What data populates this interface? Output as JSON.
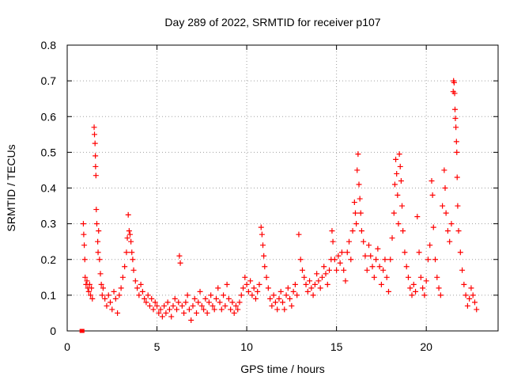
{
  "chart_data": {
    "type": "scatter",
    "title": "Day 289 of 2022, SRMTID for receiver p107",
    "xlabel": "GPS time / hours",
    "ylabel": "SRMTID / TECUs",
    "xlim": [
      0,
      24
    ],
    "ylim": [
      0,
      0.8
    ],
    "xticks": [
      0,
      5,
      10,
      15,
      20
    ],
    "xtick_labels": [
      "0",
      "5",
      "10",
      "15",
      "20"
    ],
    "yticks": [
      0,
      0.1,
      0.2,
      0.3,
      0.4,
      0.5,
      0.6,
      0.7,
      0.8
    ],
    "ytick_labels": [
      "0",
      "0.1",
      "0.2",
      "0.3",
      "0.4",
      "0.5",
      "0.6",
      "0.7",
      "0.8"
    ],
    "grid": true,
    "marker": "plus",
    "color": "#ff0000",
    "series": [
      {
        "name": "SRMTID p107",
        "points": [
          [
            0.8,
            0.0
          ],
          [
            0.85,
            0.0
          ],
          [
            0.9,
            0.3
          ],
          [
            0.92,
            0.27
          ],
          [
            0.95,
            0.24
          ],
          [
            0.98,
            0.2
          ],
          [
            1.0,
            0.15
          ],
          [
            1.05,
            0.13
          ],
          [
            1.1,
            0.14
          ],
          [
            1.15,
            0.12
          ],
          [
            1.2,
            0.11
          ],
          [
            1.25,
            0.13
          ],
          [
            1.3,
            0.1
          ],
          [
            1.35,
            0.12
          ],
          [
            1.4,
            0.09
          ],
          [
            1.5,
            0.57
          ],
          [
            1.52,
            0.55
          ],
          [
            1.55,
            0.525
          ],
          [
            1.57,
            0.49
          ],
          [
            1.58,
            0.46
          ],
          [
            1.6,
            0.435
          ],
          [
            1.62,
            0.34
          ],
          [
            1.65,
            0.3
          ],
          [
            1.7,
            0.25
          ],
          [
            1.72,
            0.22
          ],
          [
            1.75,
            0.28
          ],
          [
            1.8,
            0.2
          ],
          [
            1.85,
            0.16
          ],
          [
            1.9,
            0.13
          ],
          [
            1.95,
            0.1
          ],
          [
            2.0,
            0.12
          ],
          [
            2.1,
            0.09
          ],
          [
            2.2,
            0.07
          ],
          [
            2.3,
            0.1
          ],
          [
            2.4,
            0.08
          ],
          [
            2.5,
            0.06
          ],
          [
            2.6,
            0.11
          ],
          [
            2.7,
            0.09
          ],
          [
            2.8,
            0.05
          ],
          [
            2.9,
            0.1
          ],
          [
            3.0,
            0.12
          ],
          [
            3.1,
            0.15
          ],
          [
            3.2,
            0.18
          ],
          [
            3.3,
            0.22
          ],
          [
            3.35,
            0.26
          ],
          [
            3.4,
            0.325
          ],
          [
            3.45,
            0.28
          ],
          [
            3.5,
            0.27
          ],
          [
            3.55,
            0.25
          ],
          [
            3.6,
            0.22
          ],
          [
            3.65,
            0.2
          ],
          [
            3.7,
            0.17
          ],
          [
            3.8,
            0.14
          ],
          [
            3.9,
            0.12
          ],
          [
            4.0,
            0.1
          ],
          [
            4.1,
            0.13
          ],
          [
            4.2,
            0.11
          ],
          [
            4.3,
            0.09
          ],
          [
            4.4,
            0.08
          ],
          [
            4.5,
            0.1
          ],
          [
            4.6,
            0.07
          ],
          [
            4.7,
            0.09
          ],
          [
            4.8,
            0.06
          ],
          [
            4.9,
            0.08
          ],
          [
            5.0,
            0.07
          ],
          [
            5.1,
            0.05
          ],
          [
            5.2,
            0.06
          ],
          [
            5.3,
            0.04
          ],
          [
            5.4,
            0.07
          ],
          [
            5.5,
            0.05
          ],
          [
            5.6,
            0.08
          ],
          [
            5.7,
            0.06
          ],
          [
            5.8,
            0.04
          ],
          [
            5.9,
            0.07
          ],
          [
            6.0,
            0.09
          ],
          [
            6.1,
            0.06
          ],
          [
            6.2,
            0.08
          ],
          [
            6.25,
            0.21
          ],
          [
            6.3,
            0.19
          ],
          [
            6.4,
            0.07
          ],
          [
            6.5,
            0.05
          ],
          [
            6.6,
            0.08
          ],
          [
            6.7,
            0.1
          ],
          [
            6.8,
            0.06
          ],
          [
            6.9,
            0.03
          ],
          [
            7.0,
            0.07
          ],
          [
            7.1,
            0.09
          ],
          [
            7.2,
            0.05
          ],
          [
            7.3,
            0.08
          ],
          [
            7.4,
            0.11
          ],
          [
            7.5,
            0.07
          ],
          [
            7.6,
            0.06
          ],
          [
            7.7,
            0.09
          ],
          [
            7.8,
            0.05
          ],
          [
            7.9,
            0.08
          ],
          [
            8.0,
            0.1
          ],
          [
            8.1,
            0.07
          ],
          [
            8.2,
            0.06
          ],
          [
            8.3,
            0.09
          ],
          [
            8.4,
            0.12
          ],
          [
            8.5,
            0.08
          ],
          [
            8.6,
            0.06
          ],
          [
            8.7,
            0.1
          ],
          [
            8.8,
            0.07
          ],
          [
            8.9,
            0.13
          ],
          [
            9.0,
            0.09
          ],
          [
            9.1,
            0.06
          ],
          [
            9.2,
            0.08
          ],
          [
            9.3,
            0.05
          ],
          [
            9.4,
            0.07
          ],
          [
            9.5,
            0.06
          ],
          [
            9.6,
            0.08
          ],
          [
            9.7,
            0.1
          ],
          [
            9.8,
            0.12
          ],
          [
            9.9,
            0.15
          ],
          [
            10.0,
            0.13
          ],
          [
            10.1,
            0.11
          ],
          [
            10.2,
            0.14
          ],
          [
            10.3,
            0.1
          ],
          [
            10.4,
            0.12
          ],
          [
            10.5,
            0.09
          ],
          [
            10.6,
            0.11
          ],
          [
            10.7,
            0.13
          ],
          [
            10.8,
            0.29
          ],
          [
            10.85,
            0.27
          ],
          [
            10.9,
            0.24
          ],
          [
            10.95,
            0.21
          ],
          [
            11.0,
            0.18
          ],
          [
            11.1,
            0.15
          ],
          [
            11.2,
            0.12
          ],
          [
            11.3,
            0.09
          ],
          [
            11.4,
            0.07
          ],
          [
            11.5,
            0.1
          ],
          [
            11.6,
            0.08
          ],
          [
            11.7,
            0.06
          ],
          [
            11.8,
            0.09
          ],
          [
            11.9,
            0.11
          ],
          [
            12.0,
            0.08
          ],
          [
            12.1,
            0.06
          ],
          [
            12.2,
            0.1
          ],
          [
            12.3,
            0.12
          ],
          [
            12.4,
            0.09
          ],
          [
            12.5,
            0.07
          ],
          [
            12.6,
            0.11
          ],
          [
            12.7,
            0.13
          ],
          [
            12.8,
            0.1
          ],
          [
            12.9,
            0.27
          ],
          [
            13.0,
            0.2
          ],
          [
            13.1,
            0.17
          ],
          [
            13.2,
            0.15
          ],
          [
            13.3,
            0.13
          ],
          [
            13.4,
            0.11
          ],
          [
            13.5,
            0.14
          ],
          [
            13.6,
            0.12
          ],
          [
            13.7,
            0.1
          ],
          [
            13.8,
            0.13
          ],
          [
            13.9,
            0.16
          ],
          [
            14.0,
            0.14
          ],
          [
            14.1,
            0.12
          ],
          [
            14.2,
            0.15
          ],
          [
            14.3,
            0.18
          ],
          [
            14.4,
            0.16
          ],
          [
            14.5,
            0.13
          ],
          [
            14.6,
            0.17
          ],
          [
            14.7,
            0.2
          ],
          [
            14.75,
            0.28
          ],
          [
            14.8,
            0.25
          ],
          [
            14.9,
            0.2
          ],
          [
            15.0,
            0.17
          ],
          [
            15.1,
            0.21
          ],
          [
            15.2,
            0.19
          ],
          [
            15.3,
            0.22
          ],
          [
            15.4,
            0.17
          ],
          [
            15.5,
            0.14
          ],
          [
            15.6,
            0.22
          ],
          [
            15.7,
            0.25
          ],
          [
            15.8,
            0.2
          ],
          [
            15.9,
            0.28
          ],
          [
            16.0,
            0.36
          ],
          [
            16.05,
            0.33
          ],
          [
            16.1,
            0.3
          ],
          [
            16.15,
            0.45
          ],
          [
            16.2,
            0.495
          ],
          [
            16.25,
            0.41
          ],
          [
            16.3,
            0.37
          ],
          [
            16.35,
            0.33
          ],
          [
            16.4,
            0.28
          ],
          [
            16.5,
            0.25
          ],
          [
            16.6,
            0.21
          ],
          [
            16.7,
            0.17
          ],
          [
            16.8,
            0.24
          ],
          [
            16.9,
            0.21
          ],
          [
            17.0,
            0.18
          ],
          [
            17.1,
            0.15
          ],
          [
            17.2,
            0.2
          ],
          [
            17.3,
            0.23
          ],
          [
            17.4,
            0.18
          ],
          [
            17.5,
            0.13
          ],
          [
            17.6,
            0.17
          ],
          [
            17.7,
            0.2
          ],
          [
            17.8,
            0.15
          ],
          [
            17.9,
            0.11
          ],
          [
            18.0,
            0.2
          ],
          [
            18.1,
            0.26
          ],
          [
            18.2,
            0.33
          ],
          [
            18.25,
            0.41
          ],
          [
            18.3,
            0.48
          ],
          [
            18.35,
            0.44
          ],
          [
            18.4,
            0.38
          ],
          [
            18.45,
            0.3
          ],
          [
            18.5,
            0.495
          ],
          [
            18.55,
            0.46
          ],
          [
            18.6,
            0.42
          ],
          [
            18.65,
            0.35
          ],
          [
            18.7,
            0.28
          ],
          [
            18.8,
            0.22
          ],
          [
            18.9,
            0.18
          ],
          [
            19.0,
            0.15
          ],
          [
            19.1,
            0.12
          ],
          [
            19.2,
            0.1
          ],
          [
            19.3,
            0.13
          ],
          [
            19.4,
            0.11
          ],
          [
            19.5,
            0.32
          ],
          [
            19.6,
            0.22
          ],
          [
            19.7,
            0.15
          ],
          [
            19.8,
            0.12
          ],
          [
            19.9,
            0.1
          ],
          [
            20.0,
            0.14
          ],
          [
            20.1,
            0.2
          ],
          [
            20.2,
            0.24
          ],
          [
            20.3,
            0.42
          ],
          [
            20.35,
            0.38
          ],
          [
            20.4,
            0.29
          ],
          [
            20.5,
            0.2
          ],
          [
            20.6,
            0.15
          ],
          [
            20.7,
            0.12
          ],
          [
            20.8,
            0.1
          ],
          [
            20.9,
            0.35
          ],
          [
            21.0,
            0.45
          ],
          [
            21.05,
            0.4
          ],
          [
            21.1,
            0.33
          ],
          [
            21.2,
            0.28
          ],
          [
            21.3,
            0.25
          ],
          [
            21.4,
            0.3
          ],
          [
            21.5,
            0.67
          ],
          [
            21.52,
            0.7
          ],
          [
            21.55,
            0.695
          ],
          [
            21.58,
            0.665
          ],
          [
            21.6,
            0.62
          ],
          [
            21.62,
            0.595
          ],
          [
            21.65,
            0.57
          ],
          [
            21.68,
            0.53
          ],
          [
            21.7,
            0.5
          ],
          [
            21.72,
            0.43
          ],
          [
            21.75,
            0.35
          ],
          [
            21.8,
            0.28
          ],
          [
            21.9,
            0.22
          ],
          [
            22.0,
            0.17
          ],
          [
            22.1,
            0.13
          ],
          [
            22.2,
            0.1
          ],
          [
            22.3,
            0.07
          ],
          [
            22.4,
            0.09
          ],
          [
            22.5,
            0.12
          ],
          [
            22.6,
            0.1
          ],
          [
            22.7,
            0.08
          ],
          [
            22.8,
            0.06
          ]
        ]
      }
    ]
  }
}
